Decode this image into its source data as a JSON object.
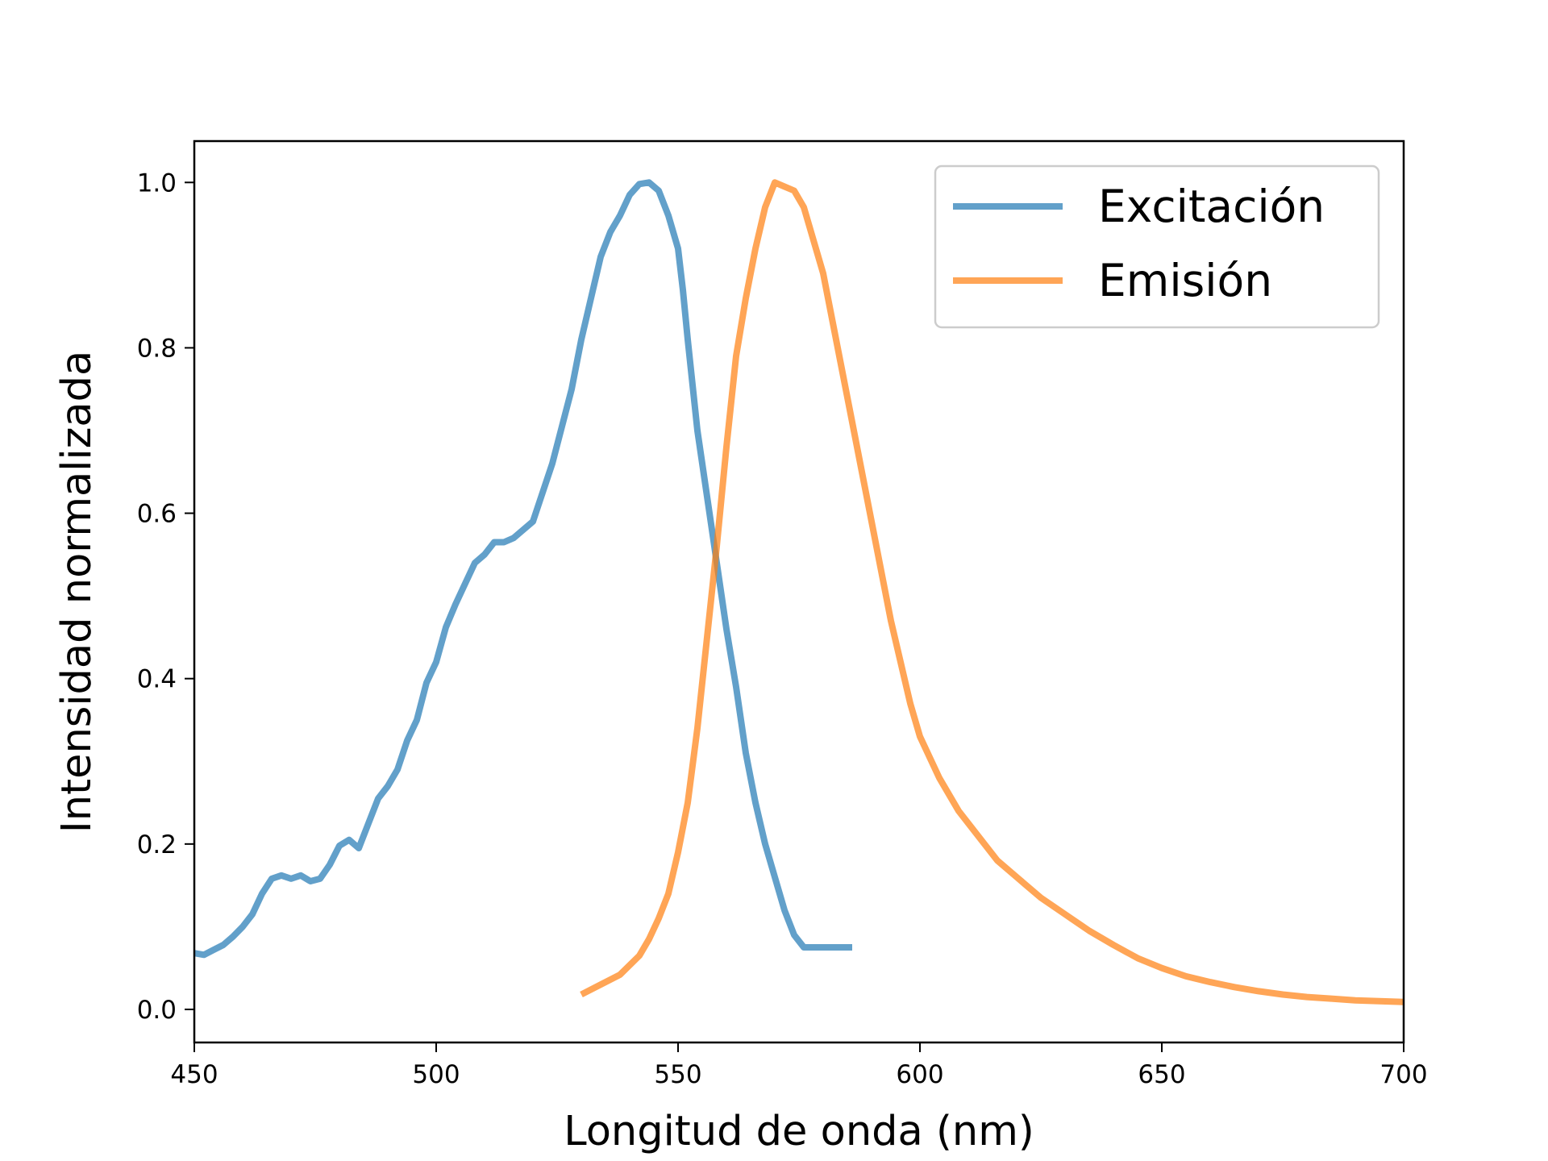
{
  "chart_data": {
    "type": "line",
    "title": "",
    "xlabel": "Longitud de onda (nm)",
    "ylabel": "Intensidad normalizada",
    "xlim": [
      450,
      700
    ],
    "ylim": [
      -0.04,
      1.05
    ],
    "xticks": [
      450,
      500,
      550,
      600,
      650,
      700
    ],
    "xtick_labels": [
      "450",
      "500",
      "550",
      "600",
      "650",
      "700"
    ],
    "yticks": [
      0.0,
      0.2,
      0.4,
      0.6,
      0.8,
      1.0
    ],
    "ytick_labels": [
      "0.0",
      "0.2",
      "0.4",
      "0.6",
      "0.8",
      "1.0"
    ],
    "grid": false,
    "legend_position": "top-right",
    "series": [
      {
        "name": "Excitación",
        "color": "#1f77b4",
        "x": [
          450,
          452,
          454,
          456,
          458,
          460,
          462,
          464,
          466,
          468,
          470,
          472,
          474,
          476,
          478,
          480,
          482,
          484,
          486,
          488,
          490,
          492,
          494,
          496,
          498,
          500,
          502,
          504,
          506,
          508,
          510,
          512,
          514,
          516,
          518,
          520,
          522,
          524,
          526,
          528,
          530,
          532,
          534,
          536,
          538,
          540,
          542,
          544,
          546,
          548,
          550,
          551,
          552,
          554,
          556,
          558,
          560,
          562,
          564,
          566,
          568,
          570,
          572,
          574,
          576,
          578,
          580,
          582,
          584,
          586
        ],
        "y": [
          0.068,
          0.066,
          0.072,
          0.078,
          0.088,
          0.1,
          0.115,
          0.14,
          0.158,
          0.162,
          0.158,
          0.162,
          0.155,
          0.158,
          0.175,
          0.198,
          0.205,
          0.195,
          0.225,
          0.255,
          0.27,
          0.29,
          0.325,
          0.35,
          0.395,
          0.42,
          0.462,
          0.49,
          0.515,
          0.54,
          0.55,
          0.565,
          0.565,
          0.57,
          0.58,
          0.59,
          0.625,
          0.66,
          0.705,
          0.75,
          0.81,
          0.86,
          0.91,
          0.94,
          0.96,
          0.985,
          0.998,
          1.0,
          0.99,
          0.96,
          0.92,
          0.87,
          0.81,
          0.7,
          0.62,
          0.54,
          0.46,
          0.39,
          0.31,
          0.25,
          0.2,
          0.16,
          0.12,
          0.09,
          0.075,
          0.075,
          0.075,
          0.075,
          0.075,
          0.075
        ]
      },
      {
        "name": "Emisión",
        "color": "#ff7f0e",
        "x": [
          530,
          534,
          538,
          542,
          544,
          546,
          548,
          550,
          552,
          554,
          556,
          558,
          560,
          562,
          564,
          566,
          568,
          570,
          572,
          574,
          576,
          578,
          580,
          582,
          584,
          586,
          588,
          590,
          592,
          594,
          596,
          598,
          600,
          604,
          608,
          612,
          616,
          620,
          625,
          630,
          635,
          640,
          645,
          650,
          655,
          660,
          665,
          670,
          675,
          680,
          685,
          690,
          695,
          700
        ],
        "y": [
          0.018,
          0.03,
          0.042,
          0.065,
          0.085,
          0.11,
          0.14,
          0.19,
          0.25,
          0.34,
          0.45,
          0.56,
          0.68,
          0.79,
          0.86,
          0.92,
          0.97,
          1.0,
          0.995,
          0.99,
          0.97,
          0.93,
          0.89,
          0.83,
          0.77,
          0.71,
          0.65,
          0.59,
          0.53,
          0.47,
          0.42,
          0.37,
          0.33,
          0.28,
          0.24,
          0.21,
          0.18,
          0.16,
          0.135,
          0.115,
          0.095,
          0.078,
          0.062,
          0.05,
          0.04,
          0.033,
          0.027,
          0.022,
          0.018,
          0.015,
          0.013,
          0.011,
          0.01,
          0.009
        ]
      }
    ]
  }
}
